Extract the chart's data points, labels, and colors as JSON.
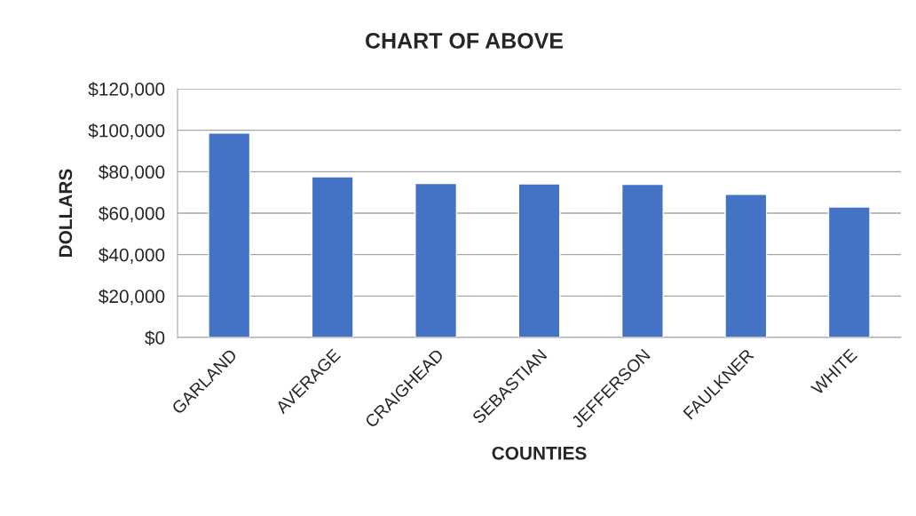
{
  "chart_data": {
    "type": "bar",
    "title": "CHART OF ABOVE",
    "xlabel": "COUNTIES",
    "ylabel": "DOLLARS",
    "categories": [
      "GARLAND",
      "AVERAGE",
      "CRAIGHEAD",
      "SEBASTIAN",
      "JEFFERSON",
      "FAULKNER",
      "WHITE"
    ],
    "values": [
      98700,
      77600,
      74350,
      74100,
      73900,
      69100,
      63000
    ],
    "color": "#4472c4",
    "ylim": [
      0,
      120000
    ],
    "yticks": [
      {
        "value": 0,
        "label": "$0"
      },
      {
        "value": 20000,
        "label": "$20,000"
      },
      {
        "value": 40000,
        "label": "$40,000"
      },
      {
        "value": 60000,
        "label": "$60,000"
      },
      {
        "value": 80000,
        "label": "$80,000"
      },
      {
        "value": 100000,
        "label": "$100,000"
      },
      {
        "value": 120000,
        "label": "$120,000"
      }
    ],
    "grid": "y",
    "legend": false
  }
}
